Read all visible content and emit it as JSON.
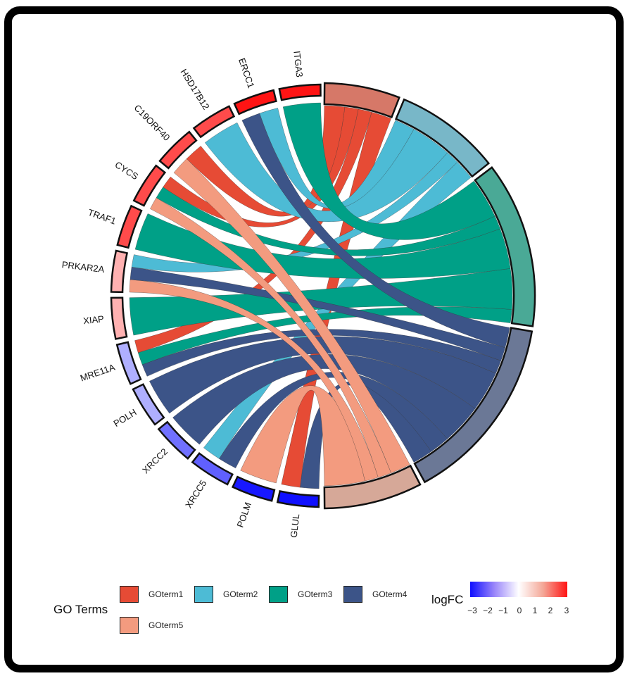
{
  "genes": [
    {
      "name": "GLUL",
      "logFC": -3,
      "terms": [
        4,
        1
      ]
    },
    {
      "name": "POLM",
      "logFC": -2.9,
      "terms": [
        5
      ]
    },
    {
      "name": "XRCC5",
      "logFC": -2,
      "terms": [
        4,
        2
      ]
    },
    {
      "name": "XRCC2",
      "logFC": -1.8,
      "terms": [
        4
      ]
    },
    {
      "name": "POLH",
      "logFC": -1,
      "terms": [
        4
      ]
    },
    {
      "name": "MRE11A",
      "logFC": -1,
      "terms": [
        4,
        3,
        1
      ]
    },
    {
      "name": "XIAP",
      "logFC": 1,
      "terms": [
        3
      ]
    },
    {
      "name": "PRKAR2A",
      "logFC": 1,
      "terms": [
        5,
        4,
        2
      ]
    },
    {
      "name": "TRAF1",
      "logFC": 2.3,
      "terms": [
        3
      ]
    },
    {
      "name": "CYCS",
      "logFC": 2.3,
      "terms": [
        5,
        3,
        1
      ]
    },
    {
      "name": "C19ORF40",
      "logFC": 2.3,
      "terms": [
        5,
        1
      ]
    },
    {
      "name": "HSD17B12",
      "logFC": 2.3,
      "terms": [
        2
      ]
    },
    {
      "name": "ERCC1",
      "logFC": 3,
      "terms": [
        4,
        2
      ]
    },
    {
      "name": "ITGA3",
      "logFC": 3,
      "terms": [
        3
      ]
    }
  ],
  "go_terms": [
    {
      "id": 1,
      "label": "GOterm1",
      "color": "#e64b35",
      "ring_color": "#d67868"
    },
    {
      "id": 2,
      "label": "GOterm2",
      "color": "#4dbbd5",
      "ring_color": "#78b7c8"
    },
    {
      "id": 3,
      "label": "GOterm3",
      "color": "#00a087",
      "ring_color": "#4aa996"
    },
    {
      "id": 4,
      "label": "GOterm4",
      "color": "#3c5488",
      "ring_color": "#6b7896"
    },
    {
      "id": 5,
      "label": "GOterm5",
      "color": "#f39b7f",
      "ring_color": "#d6a898"
    }
  ],
  "legend": {
    "go_title": "GO Terms",
    "logfc_title": "logFC",
    "logfc_ticks": [
      "−3",
      "−2",
      "−1",
      "0",
      "1",
      "2",
      "3"
    ],
    "logfc_range": [
      -3,
      3
    ],
    "logfc_colors": {
      "low": "#1010ff",
      "mid": "#ffffff",
      "high": "#ff1414"
    }
  }
}
